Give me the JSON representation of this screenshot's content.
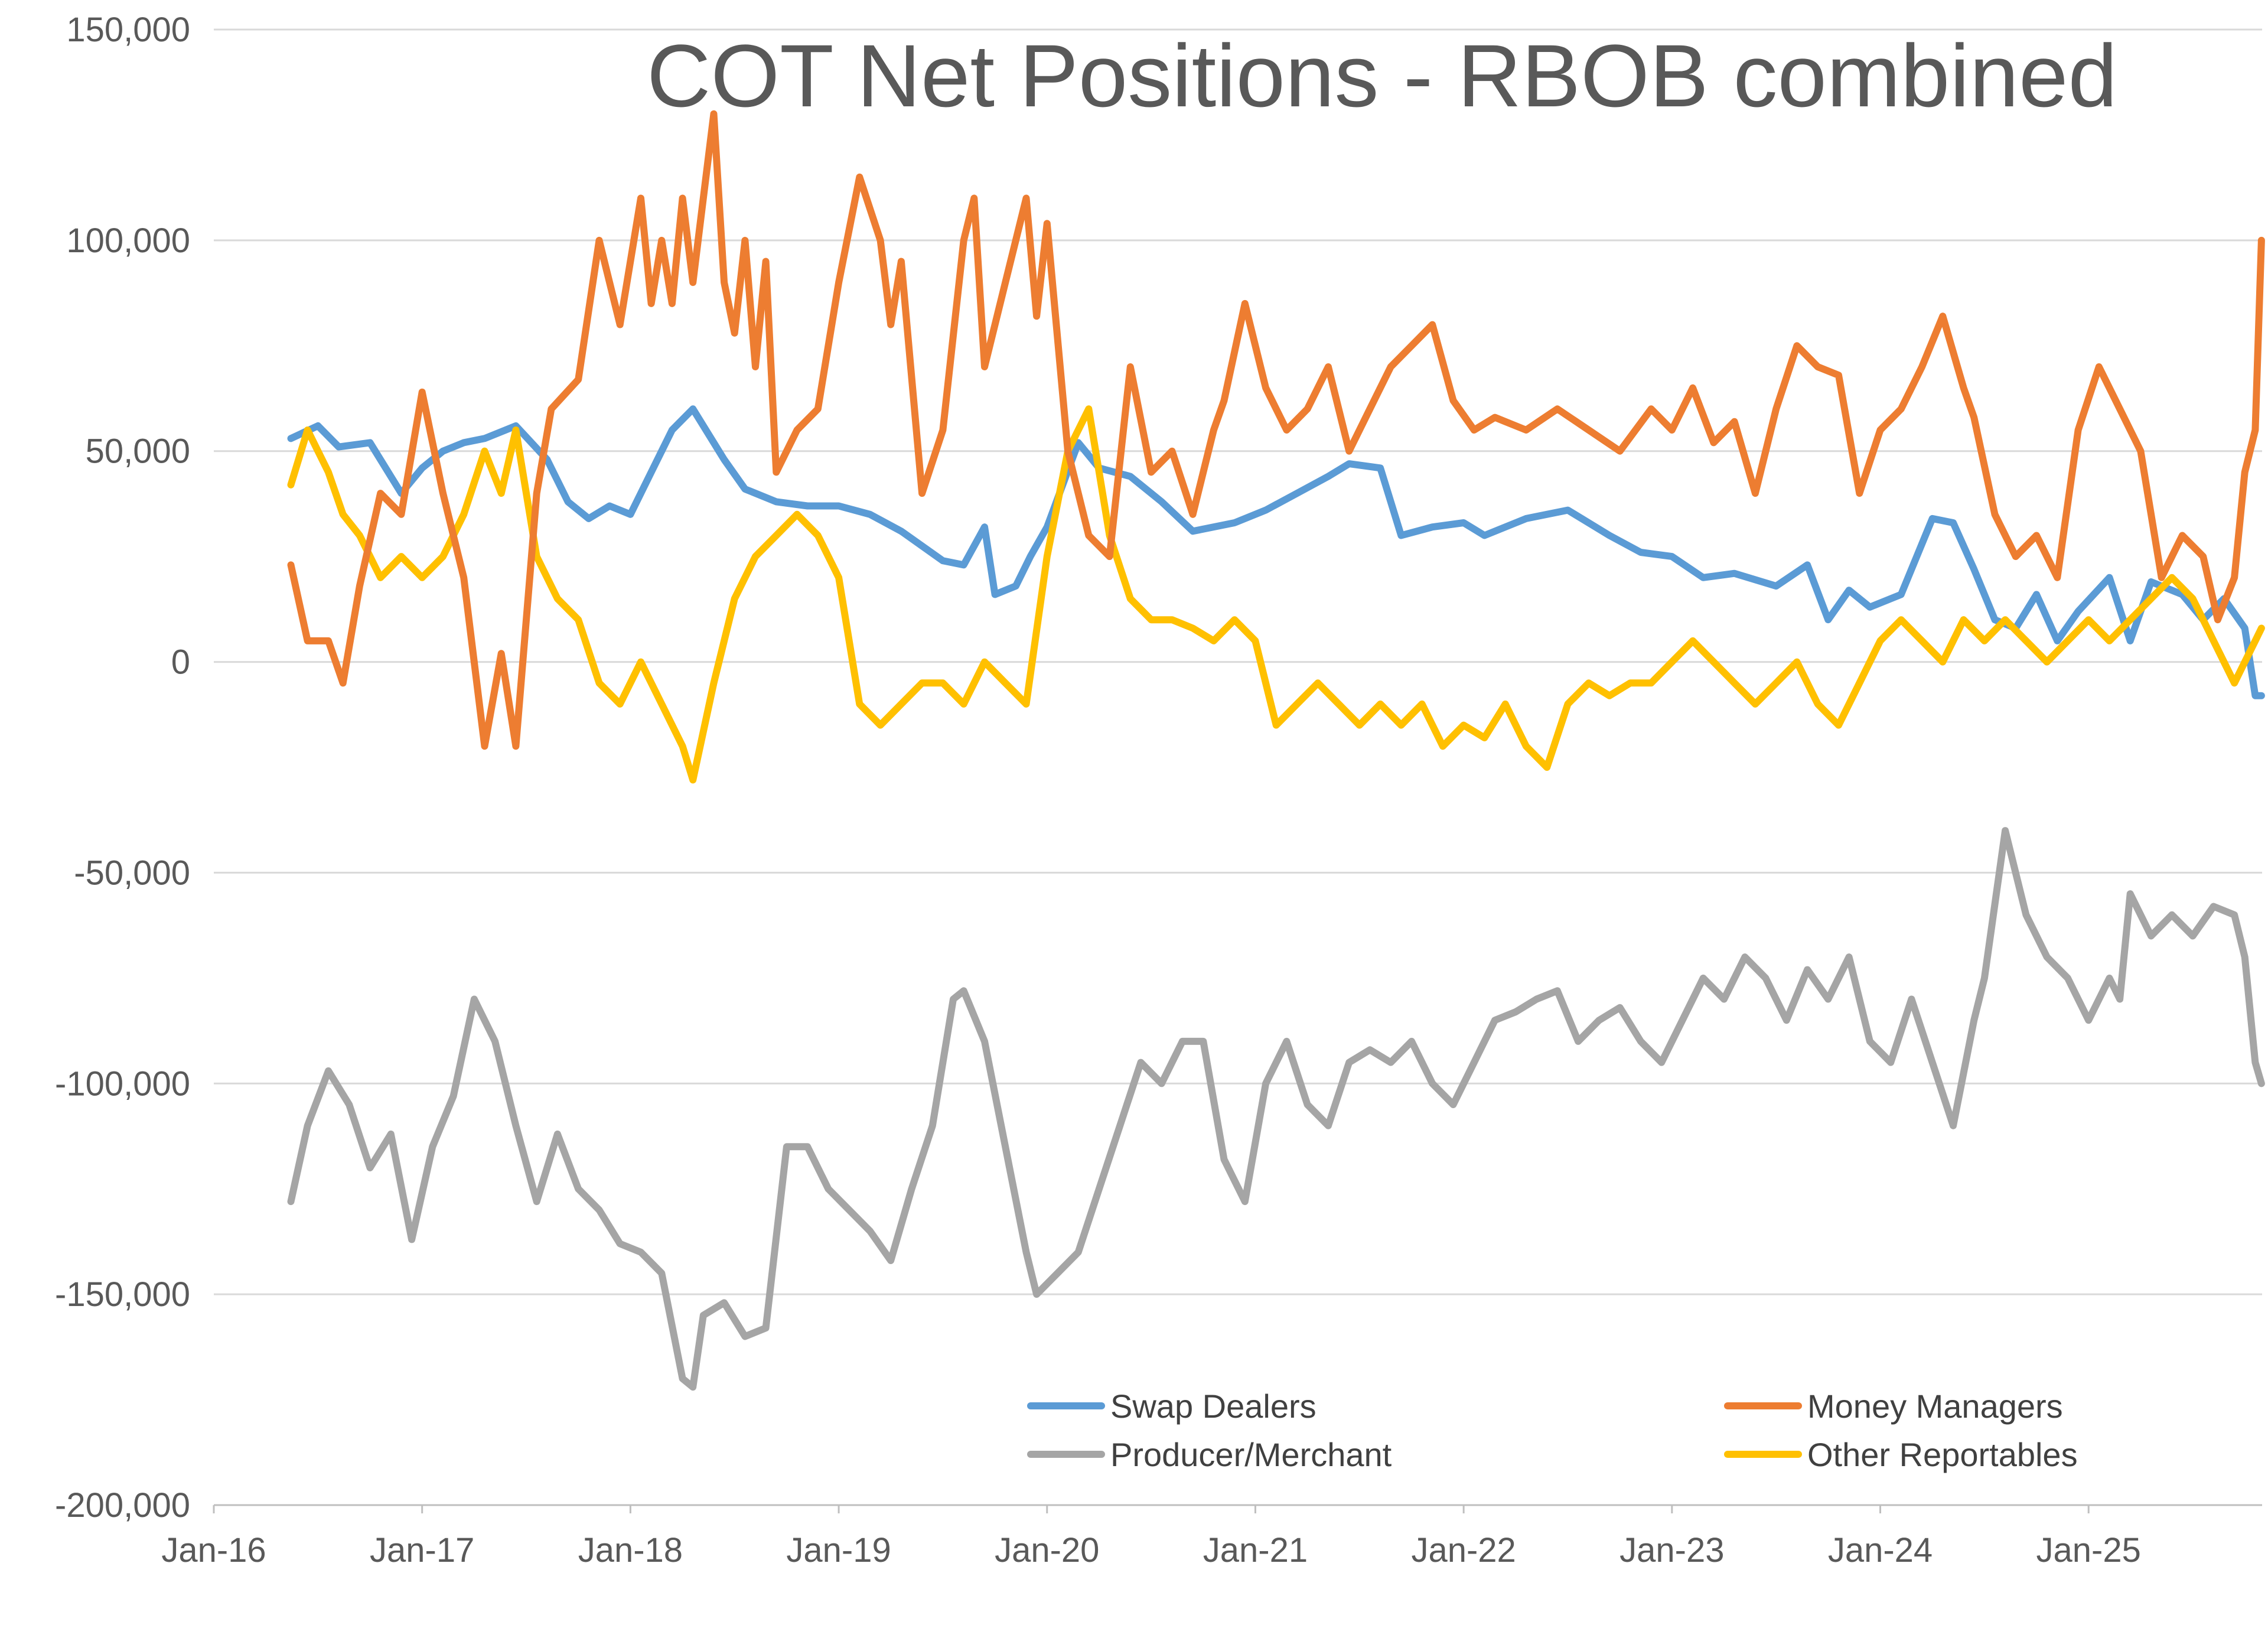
{
  "chart_data": {
    "type": "line",
    "title": "COT Net Positions - RBOB combined",
    "xlabel": "",
    "ylabel": "",
    "ylim": [
      -200000,
      150000
    ],
    "y_ticks": [
      150000,
      100000,
      50000,
      0,
      -50000,
      -100000,
      -150000,
      -200000
    ],
    "y_tick_labels": [
      "150,000",
      "100,000",
      "50,000",
      "0",
      "-50,000",
      "-100,000",
      "-150,000",
      "-200,000"
    ],
    "xlim": [
      2016.0,
      2025.833
    ],
    "x_ticks": [
      2016,
      2017,
      2018,
      2019,
      2020,
      2021,
      2022,
      2023,
      2024,
      2025
    ],
    "x_tick_labels": [
      "Jan-16",
      "Jan-17",
      "Jan-18",
      "Jan-19",
      "Jan-20",
      "Jan-21",
      "Jan-22",
      "Jan-23",
      "Jan-24",
      "Jan-25"
    ],
    "legend_position": "bottom-inside",
    "series": [
      {
        "name": "Swap Dealers",
        "color": "#5B9BD5",
        "x": [
          2016.37,
          2016.5,
          2016.6,
          2016.75,
          2016.9,
          2017.0,
          2017.1,
          2017.2,
          2017.3,
          2017.45,
          2017.6,
          2017.7,
          2017.8,
          2017.9,
          2018.0,
          2018.1,
          2018.2,
          2018.3,
          2018.45,
          2018.55,
          2018.7,
          2018.85,
          2019.0,
          2019.15,
          2019.3,
          2019.5,
          2019.6,
          2019.7,
          2019.75,
          2019.85,
          2019.92,
          2020.0,
          2020.15,
          2020.25,
          2020.4,
          2020.55,
          2020.7,
          2020.9,
          2021.05,
          2021.2,
          2021.35,
          2021.45,
          2021.6,
          2021.7,
          2021.85,
          2022.0,
          2022.1,
          2022.3,
          2022.5,
          2022.7,
          2022.85,
          2023.0,
          2023.15,
          2023.3,
          2023.5,
          2023.65,
          2023.75,
          2023.85,
          2023.95,
          2024.1,
          2024.25,
          2024.35,
          2024.45,
          2024.55,
          2024.65,
          2024.75,
          2024.85,
          2024.95,
          2025.1,
          2025.2,
          2025.3,
          2025.45,
          2025.55,
          2025.65,
          2025.75,
          2025.8,
          2025.83
        ],
        "values": [
          53000,
          56000,
          51000,
          52000,
          40000,
          46000,
          50000,
          52000,
          53000,
          56000,
          48000,
          38000,
          34000,
          37000,
          35000,
          45000,
          55000,
          60000,
          48000,
          41000,
          38000,
          37000,
          37000,
          35000,
          31000,
          24000,
          23000,
          32000,
          16000,
          18000,
          25000,
          32000,
          52000,
          46000,
          44000,
          38000,
          31000,
          33000,
          36000,
          40000,
          44000,
          47000,
          46000,
          30000,
          32000,
          33000,
          30000,
          34000,
          36000,
          30000,
          26000,
          25000,
          20000,
          21000,
          18000,
          23000,
          10000,
          17000,
          13000,
          16000,
          34000,
          33000,
          22000,
          10000,
          8000,
          16000,
          5000,
          12000,
          20000,
          5000,
          19000,
          16000,
          10000,
          15000,
          8000,
          -8000,
          -8000
        ]
      },
      {
        "name": "Money Managers",
        "color": "#ED7D31",
        "x": [
          2016.37,
          2016.45,
          2016.55,
          2016.62,
          2016.7,
          2016.8,
          2016.9,
          2017.0,
          2017.1,
          2017.2,
          2017.3,
          2017.38,
          2017.45,
          2017.55,
          2017.62,
          2017.75,
          2017.85,
          2017.95,
          2018.05,
          2018.1,
          2018.15,
          2018.2,
          2018.25,
          2018.3,
          2018.35,
          2018.4,
          2018.45,
          2018.5,
          2018.55,
          2018.6,
          2018.65,
          2018.7,
          2018.8,
          2018.9,
          2019.0,
          2019.1,
          2019.2,
          2019.25,
          2019.3,
          2019.4,
          2019.5,
          2019.6,
          2019.65,
          2019.7,
          2019.8,
          2019.9,
          2019.95,
          2020.0,
          2020.1,
          2020.2,
          2020.3,
          2020.4,
          2020.5,
          2020.6,
          2020.7,
          2020.8,
          2020.85,
          2020.95,
          2021.05,
          2021.15,
          2021.25,
          2021.35,
          2021.45,
          2021.55,
          2021.65,
          2021.75,
          2021.85,
          2021.95,
          2022.05,
          2022.15,
          2022.3,
          2022.45,
          2022.6,
          2022.75,
          2022.9,
          2023.0,
          2023.1,
          2023.2,
          2023.3,
          2023.4,
          2023.5,
          2023.6,
          2023.7,
          2023.8,
          2023.9,
          2024.0,
          2024.1,
          2024.2,
          2024.3,
          2024.4,
          2024.45,
          2024.55,
          2024.65,
          2024.75,
          2024.85,
          2024.95,
          2025.05,
          2025.15,
          2025.25,
          2025.35,
          2025.45,
          2025.55,
          2025.62,
          2025.7,
          2025.75,
          2025.8,
          2025.83
        ],
        "values": [
          23000,
          5000,
          5000,
          -5000,
          18000,
          40000,
          35000,
          64000,
          40000,
          20000,
          -20000,
          2000,
          -20000,
          40000,
          60000,
          67000,
          100000,
          80000,
          110000,
          85000,
          100000,
          85000,
          110000,
          90000,
          110000,
          130000,
          90000,
          78000,
          100000,
          70000,
          95000,
          45000,
          55000,
          60000,
          90000,
          115000,
          100000,
          80000,
          95000,
          40000,
          55000,
          100000,
          110000,
          70000,
          90000,
          110000,
          82000,
          104000,
          50000,
          30000,
          25000,
          70000,
          45000,
          50000,
          35000,
          55000,
          62000,
          85000,
          65000,
          55000,
          60000,
          70000,
          50000,
          60000,
          70000,
          75000,
          80000,
          62000,
          55000,
          58000,
          55000,
          60000,
          55000,
          50000,
          60000,
          55000,
          65000,
          52000,
          57000,
          40000,
          60000,
          75000,
          70000,
          68000,
          40000,
          55000,
          60000,
          70000,
          82000,
          65000,
          58000,
          35000,
          25000,
          30000,
          20000,
          55000,
          70000,
          60000,
          50000,
          20000,
          30000,
          25000,
          10000,
          20000,
          45000,
          55000,
          100000
        ]
      },
      {
        "name": "Producer/Merchant",
        "color": "#A5A5A5",
        "x": [
          2016.37,
          2016.45,
          2016.55,
          2016.65,
          2016.75,
          2016.85,
          2016.95,
          2017.05,
          2017.15,
          2017.25,
          2017.35,
          2017.45,
          2017.55,
          2017.65,
          2017.75,
          2017.85,
          2017.95,
          2018.05,
          2018.15,
          2018.25,
          2018.3,
          2018.35,
          2018.45,
          2018.55,
          2018.65,
          2018.75,
          2018.85,
          2018.95,
          2019.05,
          2019.15,
          2019.25,
          2019.35,
          2019.45,
          2019.55,
          2019.6,
          2019.7,
          2019.8,
          2019.9,
          2019.95,
          2020.05,
          2020.15,
          2020.25,
          2020.35,
          2020.45,
          2020.55,
          2020.65,
          2020.75,
          2020.85,
          2020.95,
          2021.05,
          2021.15,
          2021.25,
          2021.35,
          2021.45,
          2021.55,
          2021.65,
          2021.75,
          2021.85,
          2021.95,
          2022.05,
          2022.15,
          2022.25,
          2022.35,
          2022.45,
          2022.55,
          2022.65,
          2022.75,
          2022.85,
          2022.95,
          2023.05,
          2023.15,
          2023.25,
          2023.35,
          2023.45,
          2023.55,
          2023.65,
          2023.75,
          2023.85,
          2023.95,
          2024.05,
          2024.15,
          2024.25,
          2024.35,
          2024.45,
          2024.5,
          2024.6,
          2024.7,
          2024.8,
          2024.9,
          2025.0,
          2025.1,
          2025.15,
          2025.2,
          2025.3,
          2025.4,
          2025.5,
          2025.6,
          2025.7,
          2025.75,
          2025.8,
          2025.83
        ],
        "values": [
          -128000,
          -110000,
          -97000,
          -105000,
          -120000,
          -112000,
          -137000,
          -115000,
          -103000,
          -80000,
          -90000,
          -110000,
          -128000,
          -112000,
          -125000,
          -130000,
          -138000,
          -140000,
          -145000,
          -170000,
          -172000,
          -155000,
          -152000,
          -160000,
          -158000,
          -115000,
          -115000,
          -125000,
          -130000,
          -135000,
          -142000,
          -125000,
          -110000,
          -80000,
          -78000,
          -90000,
          -115000,
          -140000,
          -150000,
          -145000,
          -140000,
          -125000,
          -110000,
          -95000,
          -100000,
          -90000,
          -90000,
          -118000,
          -128000,
          -100000,
          -90000,
          -105000,
          -110000,
          -95000,
          -92000,
          -95000,
          -90000,
          -100000,
          -105000,
          -95000,
          -85000,
          -83000,
          -80000,
          -78000,
          -90000,
          -85000,
          -82000,
          -90000,
          -95000,
          -85000,
          -75000,
          -80000,
          -70000,
          -75000,
          -85000,
          -73000,
          -80000,
          -70000,
          -90000,
          -95000,
          -80000,
          -95000,
          -110000,
          -85000,
          -75000,
          -40000,
          -60000,
          -70000,
          -75000,
          -85000,
          -75000,
          -80000,
          -55000,
          -65000,
          -60000,
          -65000,
          -58000,
          -60000,
          -70000,
          -95000,
          -100000
        ]
      },
      {
        "name": "Other Reportables",
        "color": "#FFC000",
        "x": [
          2016.37,
          2016.45,
          2016.55,
          2016.62,
          2016.7,
          2016.8,
          2016.9,
          2017.0,
          2017.1,
          2017.2,
          2017.3,
          2017.38,
          2017.45,
          2017.55,
          2017.65,
          2017.75,
          2017.85,
          2017.95,
          2018.05,
          2018.15,
          2018.25,
          2018.3,
          2018.4,
          2018.5,
          2018.6,
          2018.7,
          2018.8,
          2018.9,
          2019.0,
          2019.1,
          2019.2,
          2019.3,
          2019.4,
          2019.5,
          2019.6,
          2019.7,
          2019.8,
          2019.9,
          2020.0,
          2020.1,
          2020.2,
          2020.3,
          2020.4,
          2020.5,
          2020.6,
          2020.7,
          2020.8,
          2020.9,
          2021.0,
          2021.1,
          2021.2,
          2021.3,
          2021.4,
          2021.5,
          2021.6,
          2021.7,
          2021.8,
          2021.9,
          2022.0,
          2022.1,
          2022.2,
          2022.3,
          2022.4,
          2022.5,
          2022.6,
          2022.7,
          2022.8,
          2022.9,
          2023.0,
          2023.1,
          2023.2,
          2023.3,
          2023.4,
          2023.5,
          2023.6,
          2023.7,
          2023.8,
          2023.9,
          2024.0,
          2024.1,
          2024.2,
          2024.3,
          2024.4,
          2024.5,
          2024.6,
          2024.7,
          2024.8,
          2024.9,
          2025.0,
          2025.1,
          2025.2,
          2025.3,
          2025.4,
          2025.5,
          2025.6,
          2025.7,
          2025.75,
          2025.8,
          2025.83
        ],
        "values": [
          42000,
          55000,
          45000,
          35000,
          30000,
          20000,
          25000,
          20000,
          25000,
          35000,
          50000,
          40000,
          55000,
          25000,
          15000,
          10000,
          -5000,
          -10000,
          0,
          -10000,
          -20000,
          -28000,
          -5000,
          15000,
          25000,
          30000,
          35000,
          30000,
          20000,
          -10000,
          -15000,
          -10000,
          -5000,
          -5000,
          -10000,
          0,
          -5000,
          -10000,
          25000,
          50000,
          60000,
          30000,
          15000,
          10000,
          10000,
          8000,
          5000,
          10000,
          5000,
          -15000,
          -10000,
          -5000,
          -10000,
          -15000,
          -10000,
          -15000,
          -10000,
          -20000,
          -15000,
          -18000,
          -10000,
          -20000,
          -25000,
          -10000,
          -5000,
          -8000,
          -5000,
          -5000,
          0,
          5000,
          0,
          -5000,
          -10000,
          -5000,
          0,
          -10000,
          -15000,
          -5000,
          5000,
          10000,
          5000,
          0,
          10000,
          5000,
          10000,
          5000,
          0,
          5000,
          10000,
          5000,
          10000,
          15000,
          20000,
          15000,
          5000,
          -5000,
          0,
          5000,
          8000
        ]
      }
    ]
  }
}
